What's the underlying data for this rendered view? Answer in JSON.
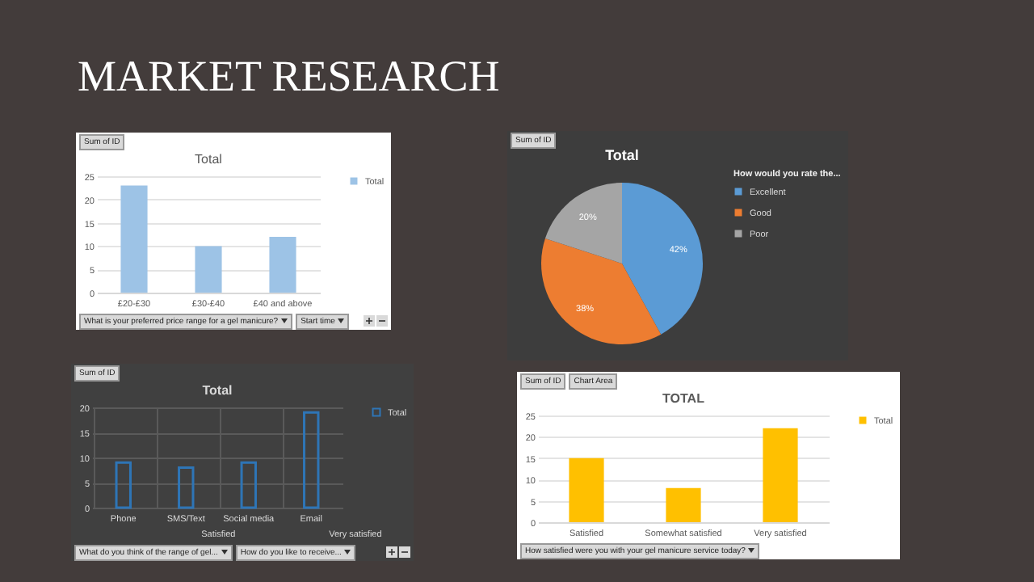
{
  "chart_data": [
    {
      "type": "other",
      "title": "MARKET RESEARCH"
    },
    {
      "type": "bar",
      "title": "Total",
      "categories": [
        "£20-£30",
        "£30-£40",
        "£40 and above"
      ],
      "series": [
        {
          "name": "Total",
          "color": "#9dc3e6",
          "values": [
            23,
            10,
            12
          ]
        }
      ],
      "ylim": [
        0,
        25
      ],
      "yticks": [
        0,
        5,
        10,
        15,
        20,
        25
      ],
      "grid": "y",
      "legend": "right",
      "annotations": [
        "Sum of ID",
        "What is your preferred price range for a gel manicure?",
        "Start time"
      ]
    },
    {
      "type": "pie",
      "title": "Total",
      "categories": [
        "Excellent",
        "Good",
        "Poor"
      ],
      "values": [
        42,
        38,
        20
      ],
      "colors": [
        "#5b9bd5",
        "#ed7d31",
        "#a5a5a5"
      ],
      "value_labels": [
        "42%",
        "38%",
        "20%"
      ],
      "legend": "right",
      "legend_title": "How would you rate the...",
      "annotations": [
        "Sum of ID"
      ]
    },
    {
      "type": "bar",
      "title": "Total",
      "categories": [
        "Phone",
        "SMS/Text",
        "Social media",
        "Email"
      ],
      "series": [
        {
          "name": "Total",
          "color": "#2e75b6",
          "values": [
            9,
            8,
            9,
            19
          ]
        }
      ],
      "ylim": [
        0,
        20
      ],
      "yticks": [
        0,
        5,
        10,
        15,
        20
      ],
      "grid": true,
      "legend": "right",
      "annotations": [
        "Sum of ID",
        "Satisfied",
        "Very satisfied",
        "What do you think of the range of gel...",
        "How do you like to receive..."
      ]
    },
    {
      "type": "bar",
      "title": "TOTAL",
      "categories": [
        "Satisfied",
        "Somewhat satisfied",
        "Very satisfied"
      ],
      "series": [
        {
          "name": "Total",
          "color": "#ffc000",
          "values": [
            15,
            8,
            22
          ]
        }
      ],
      "ylim": [
        0,
        25
      ],
      "yticks": [
        0,
        5,
        10,
        15,
        20,
        25
      ],
      "grid": "y",
      "legend": "right",
      "annotations": [
        "Sum of ID",
        "Chart Area",
        "How satisfied were you with your gel manicure service today?"
      ]
    }
  ]
}
